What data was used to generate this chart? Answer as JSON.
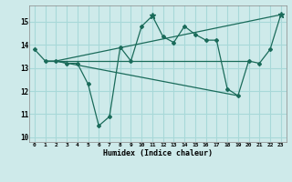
{
  "xlabel": "Humidex (Indice chaleur)",
  "ylabel": "",
  "bg_color": "#ceeaea",
  "grid_color": "#a8d8d8",
  "line_color": "#1a6b5a",
  "xlim": [
    -0.5,
    23.5
  ],
  "ylim": [
    9.8,
    15.7
  ],
  "yticks": [
    10,
    11,
    12,
    13,
    14,
    15
  ],
  "xticks": [
    0,
    1,
    2,
    3,
    4,
    5,
    6,
    7,
    8,
    9,
    10,
    11,
    12,
    13,
    14,
    15,
    16,
    17,
    18,
    19,
    20,
    21,
    22,
    23
  ],
  "series": [
    [
      0,
      13.8
    ],
    [
      1,
      13.3
    ],
    [
      2,
      13.3
    ],
    [
      3,
      13.2
    ],
    [
      4,
      13.2
    ],
    [
      5,
      12.3
    ],
    [
      6,
      10.5
    ],
    [
      7,
      10.9
    ],
    [
      8,
      13.9
    ],
    [
      9,
      13.3
    ],
    [
      10,
      14.8
    ],
    [
      11,
      15.25
    ],
    [
      12,
      14.35
    ],
    [
      13,
      14.1
    ],
    [
      14,
      14.8
    ],
    [
      15,
      14.45
    ],
    [
      16,
      14.2
    ],
    [
      17,
      14.2
    ],
    [
      18,
      12.1
    ],
    [
      19,
      11.8
    ],
    [
      20,
      13.3
    ],
    [
      21,
      13.2
    ],
    [
      22,
      13.8
    ],
    [
      23,
      15.3
    ]
  ],
  "line2": [
    [
      1,
      13.3
    ],
    [
      20,
      13.3
    ]
  ],
  "line3": [
    [
      2,
      13.3
    ],
    [
      23,
      15.3
    ]
  ],
  "line4": [
    [
      2,
      13.3
    ],
    [
      19,
      11.8
    ]
  ]
}
